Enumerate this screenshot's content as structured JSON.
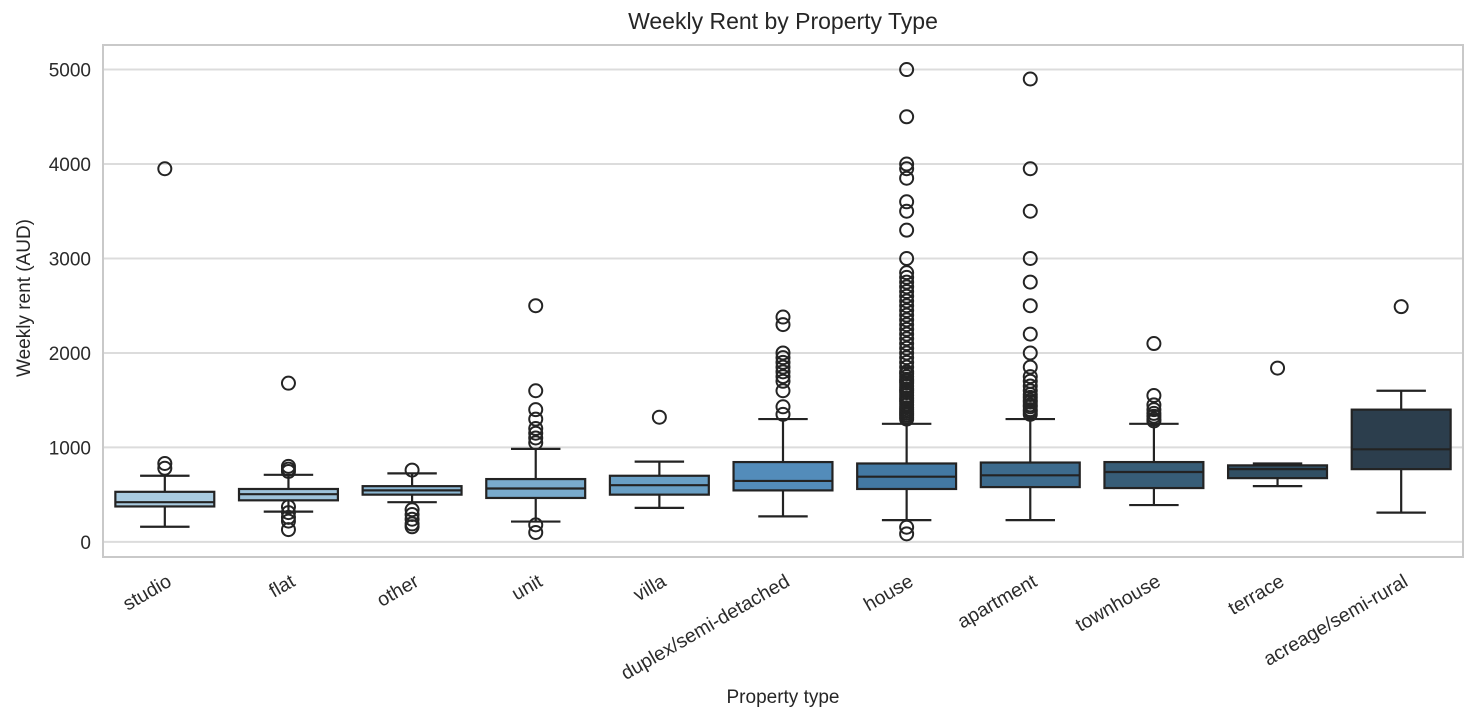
{
  "chart_data": {
    "type": "box",
    "title": "Weekly Rent by Property Type",
    "xlabel": "Property type",
    "ylabel": "Weekly rent (AUD)",
    "y_ticks": [
      0,
      1000,
      2000,
      3000,
      4000,
      5000
    ],
    "ylim": [
      -160,
      5260
    ],
    "grid": true,
    "legend": "none",
    "style": {
      "grid_color": "#dcdcdc",
      "frame_color": "#c9c9c9",
      "box_edge_color": "#232323",
      "text_color": "#2b2b2b",
      "outlier_edge_color": "#242424",
      "background": "#ffffff"
    },
    "categories": [
      "studio",
      "flat",
      "other",
      "unit",
      "villa",
      "duplex/semi-detached",
      "house",
      "apartment",
      "townhouse",
      "terrace",
      "acreage/semi-rural"
    ],
    "series": [
      {
        "name": "studio",
        "color": "#a9cbe0",
        "whisker_low": 160,
        "q1": 375,
        "median": 420,
        "q3": 530,
        "whisker_high": 700,
        "outliers": [
          780,
          830,
          3950
        ]
      },
      {
        "name": "flat",
        "color": "#9dc2da",
        "whisker_low": 320,
        "q1": 440,
        "median": 505,
        "q3": 560,
        "whisker_high": 710,
        "outliers": [
          130,
          220,
          260,
          310,
          370,
          745,
          770,
          800,
          1680
        ]
      },
      {
        "name": "other",
        "color": "#8cb8d4",
        "whisker_low": 420,
        "q1": 500,
        "median": 545,
        "q3": 590,
        "whisker_high": 725,
        "outliers": [
          160,
          190,
          240,
          290,
          340,
          760
        ]
      },
      {
        "name": "unit",
        "color": "#79abcd",
        "whisker_low": 215,
        "q1": 465,
        "median": 565,
        "q3": 665,
        "whisker_high": 985,
        "outliers": [
          100,
          180,
          1050,
          1100,
          1150,
          1200,
          1300,
          1400,
          1600,
          2500
        ]
      },
      {
        "name": "villa",
        "color": "#699fc5",
        "whisker_low": 360,
        "q1": 500,
        "median": 600,
        "q3": 700,
        "whisker_high": 850,
        "outliers": [
          1320
        ]
      },
      {
        "name": "duplex/semi-detached",
        "color": "#538cba",
        "whisker_low": 270,
        "q1": 545,
        "median": 645,
        "q3": 845,
        "whisker_high": 1300,
        "outliers": [
          1350,
          1430,
          1600,
          1700,
          1750,
          1800,
          1850,
          1900,
          1950,
          2000,
          2300,
          2380
        ]
      },
      {
        "name": "house",
        "color": "#4379a3",
        "whisker_low": 230,
        "q1": 560,
        "median": 690,
        "q3": 830,
        "whisker_high": 1250,
        "outliers": [
          85,
          155,
          1300,
          1320,
          1340,
          1360,
          1380,
          1400,
          1420,
          1450,
          1480,
          1500,
          1520,
          1550,
          1580,
          1600,
          1620,
          1650,
          1680,
          1700,
          1720,
          1750,
          1780,
          1800,
          1850,
          1900,
          1950,
          2000,
          2050,
          2100,
          2150,
          2200,
          2250,
          2300,
          2350,
          2400,
          2450,
          2500,
          2550,
          2600,
          2650,
          2700,
          2750,
          2800,
          2850,
          3000,
          3300,
          3500,
          3600,
          3850,
          3950,
          4000,
          4500,
          5000
        ]
      },
      {
        "name": "apartment",
        "color": "#3d6b8d",
        "whisker_low": 230,
        "q1": 580,
        "median": 705,
        "q3": 840,
        "whisker_high": 1300,
        "outliers": [
          1350,
          1380,
          1400,
          1430,
          1450,
          1480,
          1500,
          1530,
          1560,
          1600,
          1650,
          1700,
          1750,
          1850,
          2000,
          2200,
          2500,
          2750,
          3000,
          3500,
          3950,
          4900
        ]
      },
      {
        "name": "townhouse",
        "color": "#375d77",
        "whisker_low": 390,
        "q1": 570,
        "median": 740,
        "q3": 845,
        "whisker_high": 1250,
        "outliers": [
          1280,
          1300,
          1330,
          1360,
          1400,
          1450,
          1550,
          2100
        ]
      },
      {
        "name": "terrace",
        "color": "#314f63",
        "whisker_low": 590,
        "q1": 675,
        "median": 770,
        "q3": 810,
        "whisker_high": 830,
        "outliers": [
          1840
        ]
      },
      {
        "name": "acreage/semi-rural",
        "color": "#2c3e4d",
        "whisker_low": 310,
        "q1": 770,
        "median": 980,
        "q3": 1400,
        "whisker_high": 1600,
        "outliers": [
          2490
        ]
      }
    ]
  }
}
